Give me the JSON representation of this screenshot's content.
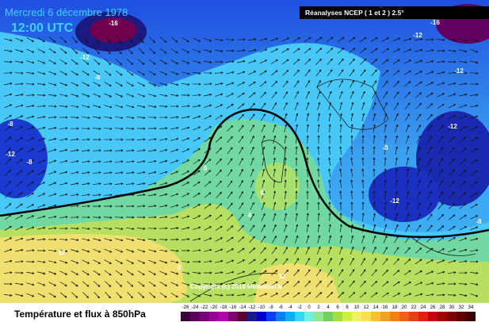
{
  "header": {
    "date": "Mercredi 6 décembre 1978",
    "time": "12:00 UTC",
    "source": "Réanalyses NCEP ( 1 et 2 ) 2.5°"
  },
  "copyright": "Copyright (c) 2010 Meteociel.fr",
  "footer": {
    "title": "Température et flux à 850hPa"
  },
  "colorbar": {
    "labels": [
      -26,
      -24,
      -22,
      -20,
      -18,
      -16,
      -14,
      -12,
      -10,
      -8,
      -6,
      -4,
      -2,
      0,
      2,
      4,
      6,
      8,
      10,
      12,
      14,
      16,
      18,
      20,
      22,
      24,
      26,
      28,
      30,
      32,
      34
    ],
    "colors": [
      "#3a003a",
      "#5a005a",
      "#7a007a",
      "#960096",
      "#b000b0",
      "#80006e",
      "#5a0030",
      "#1a1a90",
      "#0000c8",
      "#0040f0",
      "#0080ff",
      "#00b0ff",
      "#30d8ff",
      "#70f0e0",
      "#90e890",
      "#70d060",
      "#a0e040",
      "#d0f040",
      "#f0f060",
      "#f8e050",
      "#f8c030",
      "#f8a020",
      "#f88010",
      "#f06010",
      "#e84010",
      "#e02010",
      "#c80010",
      "#a00000",
      "#800000",
      "#600000",
      "#400000"
    ]
  },
  "contour_labels": [
    -16,
    -12,
    -8,
    -8,
    -12,
    -8,
    0,
    4,
    8,
    12,
    0,
    12,
    -16,
    -12,
    -12,
    -12,
    -8,
    -12,
    -8
  ]
}
